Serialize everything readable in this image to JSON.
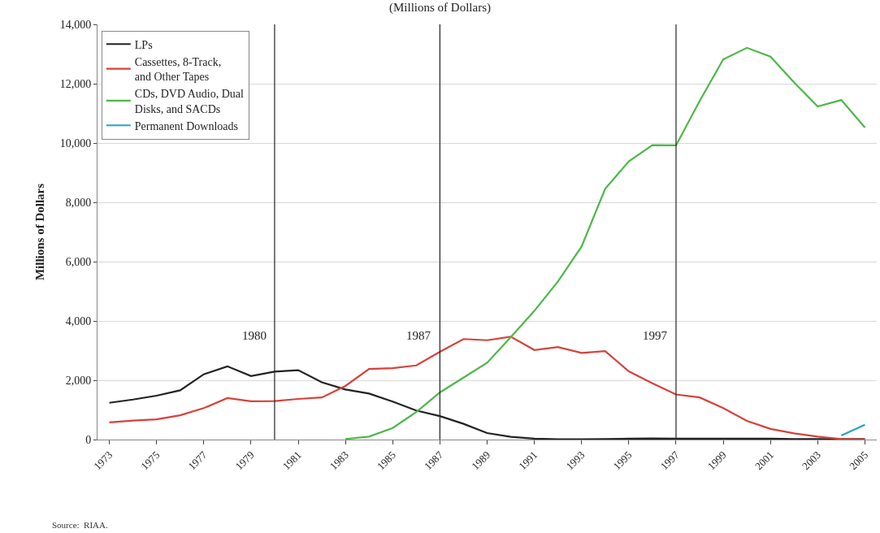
{
  "chart_data": {
    "type": "line",
    "title": "(Millions of Dollars)",
    "ylabel": "Millions of Dollars",
    "x": [
      1973,
      1974,
      1975,
      1976,
      1977,
      1978,
      1979,
      1980,
      1981,
      1982,
      1983,
      1984,
      1985,
      1986,
      1987,
      1988,
      1989,
      1990,
      1991,
      1992,
      1993,
      1994,
      1995,
      1996,
      1997,
      1998,
      1999,
      2000,
      2001,
      2002,
      2003,
      2004,
      2005
    ],
    "series": [
      {
        "name": "LPs",
        "color": "#222222",
        "values": [
          1240,
          1350,
          1480,
          1660,
          2200,
          2470,
          2140,
          2290,
          2340,
          1930,
          1690,
          1550,
          1280,
          980,
          790,
          530,
          220,
          90,
          30,
          10,
          10,
          20,
          30,
          40,
          30,
          30,
          30,
          30,
          30,
          20,
          20,
          20,
          20
        ]
      },
      {
        "name": "Cassettes, 8-Track, and Other Tapes",
        "color": "#d9413a",
        "values": [
          580,
          640,
          680,
          820,
          1060,
          1400,
          1290,
          1300,
          1370,
          1420,
          1810,
          2380,
          2410,
          2500,
          2960,
          3390,
          3350,
          3470,
          3020,
          3120,
          2920,
          2980,
          2300,
          1900,
          1520,
          1420,
          1060,
          630,
          360,
          210,
          100,
          20,
          10
        ]
      },
      {
        "name": "CDs, DVD Audio, Dual Disks, and SACDs",
        "color": "#4cb848",
        "values": [
          null,
          null,
          null,
          null,
          null,
          null,
          null,
          null,
          null,
          null,
          20,
          100,
          390,
          930,
          1590,
          2090,
          2590,
          3450,
          4340,
          5330,
          6510,
          8460,
          9380,
          9930,
          9920,
          11420,
          12820,
          13210,
          12910,
          12040,
          11230,
          11450,
          10520
        ]
      },
      {
        "name": "Permanent Downloads",
        "color": "#2a9fd0",
        "values": [
          null,
          null,
          null,
          null,
          null,
          null,
          null,
          null,
          null,
          null,
          null,
          null,
          null,
          null,
          null,
          null,
          null,
          null,
          null,
          null,
          null,
          null,
          null,
          null,
          null,
          null,
          null,
          null,
          null,
          null,
          null,
          140,
          500
        ]
      }
    ],
    "xlim": [
      1972.5,
      2005.5
    ],
    "xticks": [
      1973,
      1975,
      1977,
      1979,
      1981,
      1983,
      1985,
      1987,
      1989,
      1991,
      1993,
      1995,
      1997,
      1999,
      2001,
      2003,
      2005
    ],
    "ylim": [
      0,
      14000
    ],
    "yticks": [
      0,
      {
        "value": 2000,
        "label": "2,000"
      },
      {
        "value": 4000,
        "label": "4,000"
      },
      {
        "value": 6000,
        "label": "6,000"
      },
      {
        "value": 8000,
        "label": "8,000"
      },
      {
        "value": 10000,
        "label": "10,000"
      },
      {
        "value": 12000,
        "label": "12,000"
      },
      {
        "value": 14000,
        "label": "14,000"
      }
    ],
    "ref_lines": [
      {
        "axis": "x",
        "value": 1980,
        "label": "1980",
        "color": "#222222"
      },
      {
        "axis": "x",
        "value": 1987,
        "label": "1987",
        "color": "#222222"
      },
      {
        "axis": "x",
        "value": 1997,
        "label": "1997",
        "color": "#222222"
      }
    ],
    "annotations": [
      "Source:  RIAA."
    ],
    "grid": "y",
    "legend": "top left",
    "marker": "none",
    "line_style": "solid"
  }
}
